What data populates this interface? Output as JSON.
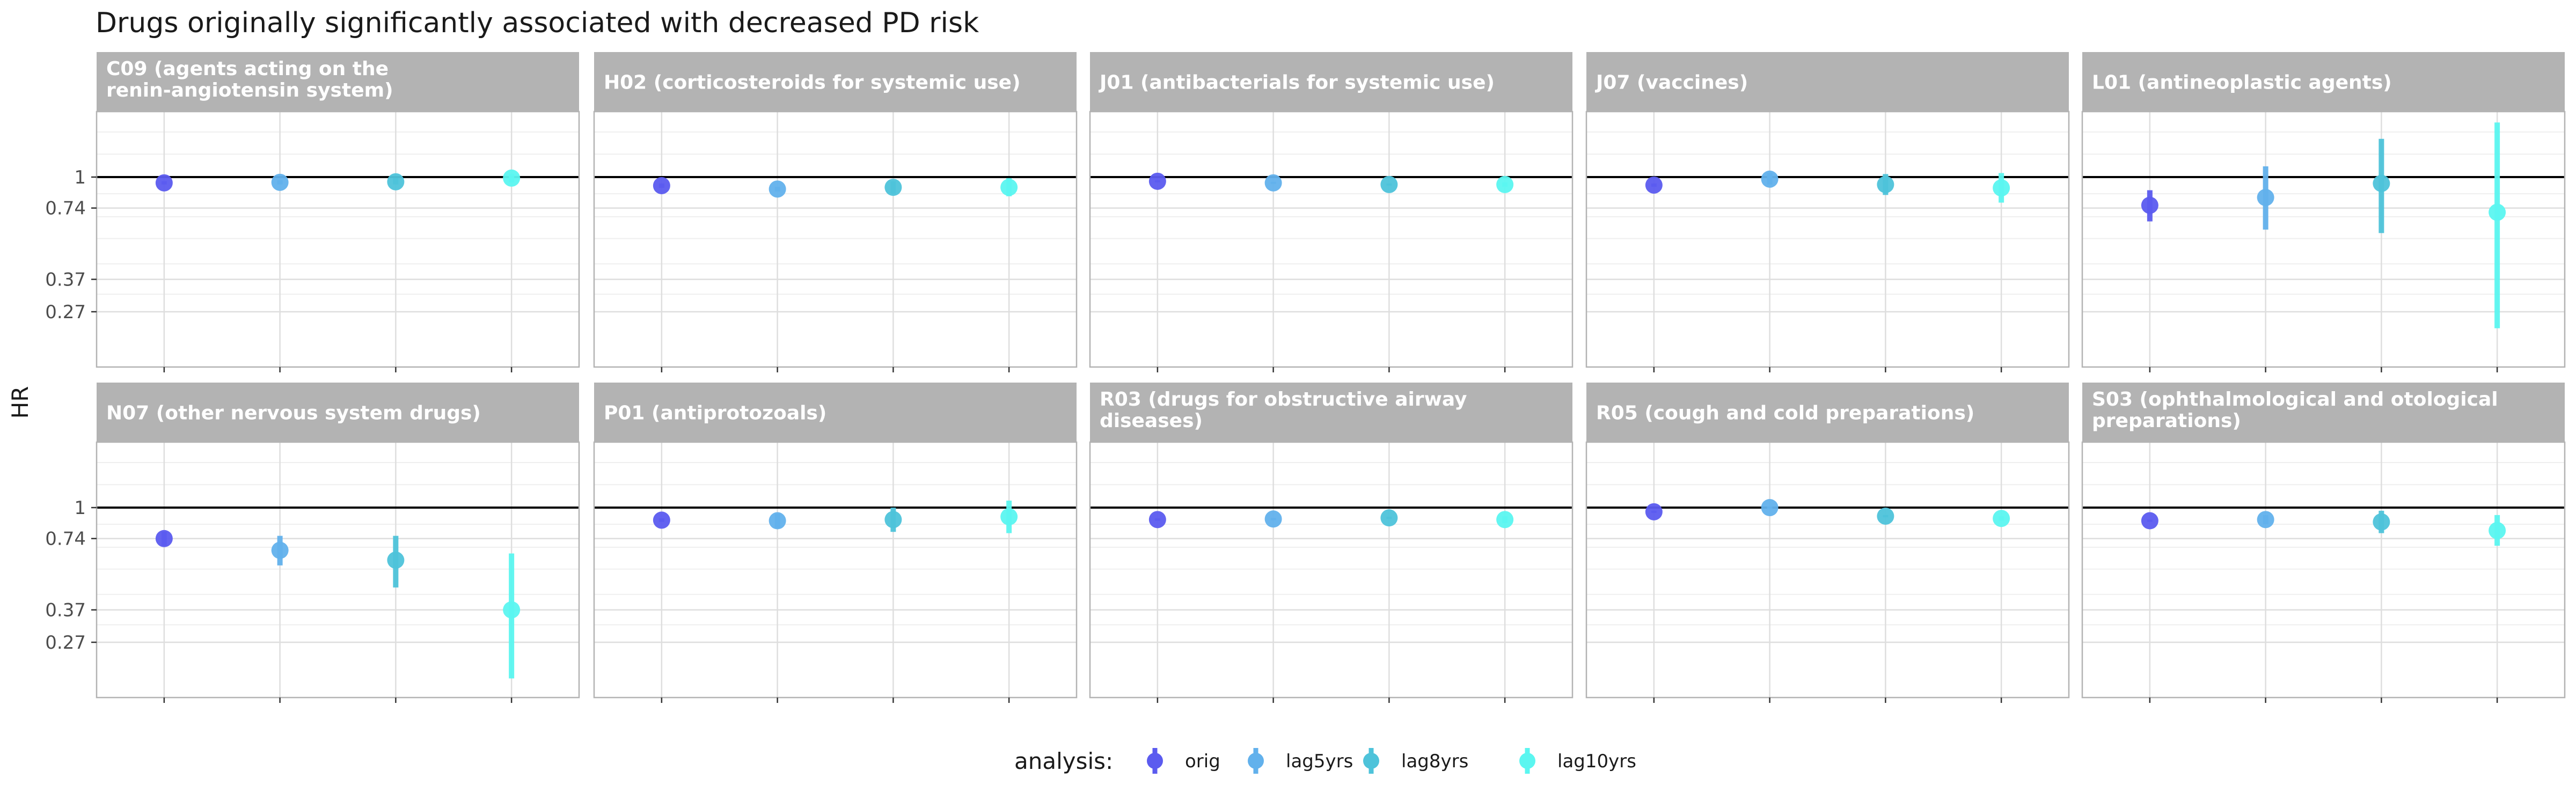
{
  "chart_data": {
    "type": "scatter",
    "title": "Drugs originally significantly associated with decreased PD risk",
    "ylabel": "HR",
    "xlabel": "",
    "y_scale": "log",
    "y_ticks": [
      {
        "value": 1,
        "label": "1"
      },
      {
        "value": 0.74,
        "label": "0.74"
      },
      {
        "value": 0.37,
        "label": "0.37"
      },
      {
        "value": 0.27,
        "label": "0.27"
      }
    ],
    "ylim": [
      0.2,
      1.8
    ],
    "grid": true,
    "reference_line": 1,
    "legend": {
      "title": "analysis:",
      "position": "bottom"
    },
    "series": [
      {
        "name": "orig",
        "color": "#5B5BEF"
      },
      {
        "name": "lag5yrs",
        "color": "#62B1EC"
      },
      {
        "name": "lag8yrs",
        "color": "#4EC3DA"
      },
      {
        "name": "lag10yrs",
        "color": "#5BF6F0"
      }
    ],
    "panels": [
      {
        "label": "C09 (agents acting on the\nrenin-angiotensin system)",
        "hr": [
          0.945,
          0.95,
          0.955,
          0.99
        ],
        "lo": [
          0.93,
          0.93,
          0.93,
          0.95
        ],
        "hi": [
          0.96,
          0.97,
          0.99,
          1.03
        ]
      },
      {
        "label": "H02 (corticosteroids for systemic use)",
        "hr": [
          0.92,
          0.89,
          0.905,
          0.905
        ],
        "lo": [
          0.9,
          0.87,
          0.85,
          0.83
        ],
        "hi": [
          0.94,
          0.91,
          0.96,
          0.99
        ]
      },
      {
        "label": "J01 (antibacterials for systemic use)",
        "hr": [
          0.96,
          0.945,
          0.93,
          0.93
        ],
        "lo": [
          0.95,
          0.935,
          0.92,
          0.91
        ],
        "hi": [
          0.97,
          0.955,
          0.94,
          0.95
        ]
      },
      {
        "label": "J07 (vaccines)",
        "hr": [
          0.925,
          0.98,
          0.93,
          0.9
        ],
        "lo": [
          0.91,
          0.93,
          0.84,
          0.78
        ],
        "hi": [
          0.94,
          1.04,
          1.03,
          1.04
        ]
      },
      {
        "label": "L01 (antineoplastic agents)",
        "hr": [
          0.76,
          0.82,
          0.94,
          0.71
        ],
        "lo": [
          0.65,
          0.6,
          0.58,
          0.23
        ],
        "hi": [
          0.88,
          1.11,
          1.45,
          1.7
        ]
      },
      {
        "label": "N07 (other nervous system drugs)",
        "hr": [
          0.74,
          0.66,
          0.6,
          0.37
        ],
        "lo": [
          0.69,
          0.57,
          0.46,
          0.19
        ],
        "hi": [
          0.79,
          0.76,
          0.76,
          0.64
        ]
      },
      {
        "label": "P01 (antiprotozoals)",
        "hr": [
          0.885,
          0.88,
          0.89,
          0.915
        ],
        "lo": [
          0.87,
          0.82,
          0.79,
          0.78
        ],
        "hi": [
          0.9,
          0.94,
          1.0,
          1.07
        ]
      },
      {
        "label": "R03 (drugs for obstructive airway\ndiseases)",
        "hr": [
          0.89,
          0.895,
          0.905,
          0.89
        ],
        "lo": [
          0.88,
          0.885,
          0.895,
          0.86
        ],
        "hi": [
          0.9,
          0.905,
          0.915,
          0.92
        ]
      },
      {
        "label": "R05 (cough and cold preparations)",
        "hr": [
          0.96,
          1.0,
          0.92,
          0.9
        ],
        "lo": [
          0.95,
          0.99,
          0.91,
          0.88
        ],
        "hi": [
          0.97,
          1.01,
          0.93,
          0.92
        ]
      },
      {
        "label": "S03 (ophthalmological and otological\npreparations)",
        "hr": [
          0.88,
          0.89,
          0.87,
          0.8
        ],
        "lo": [
          0.87,
          0.85,
          0.78,
          0.69
        ],
        "hi": [
          0.89,
          0.93,
          0.97,
          0.93
        ]
      }
    ]
  }
}
